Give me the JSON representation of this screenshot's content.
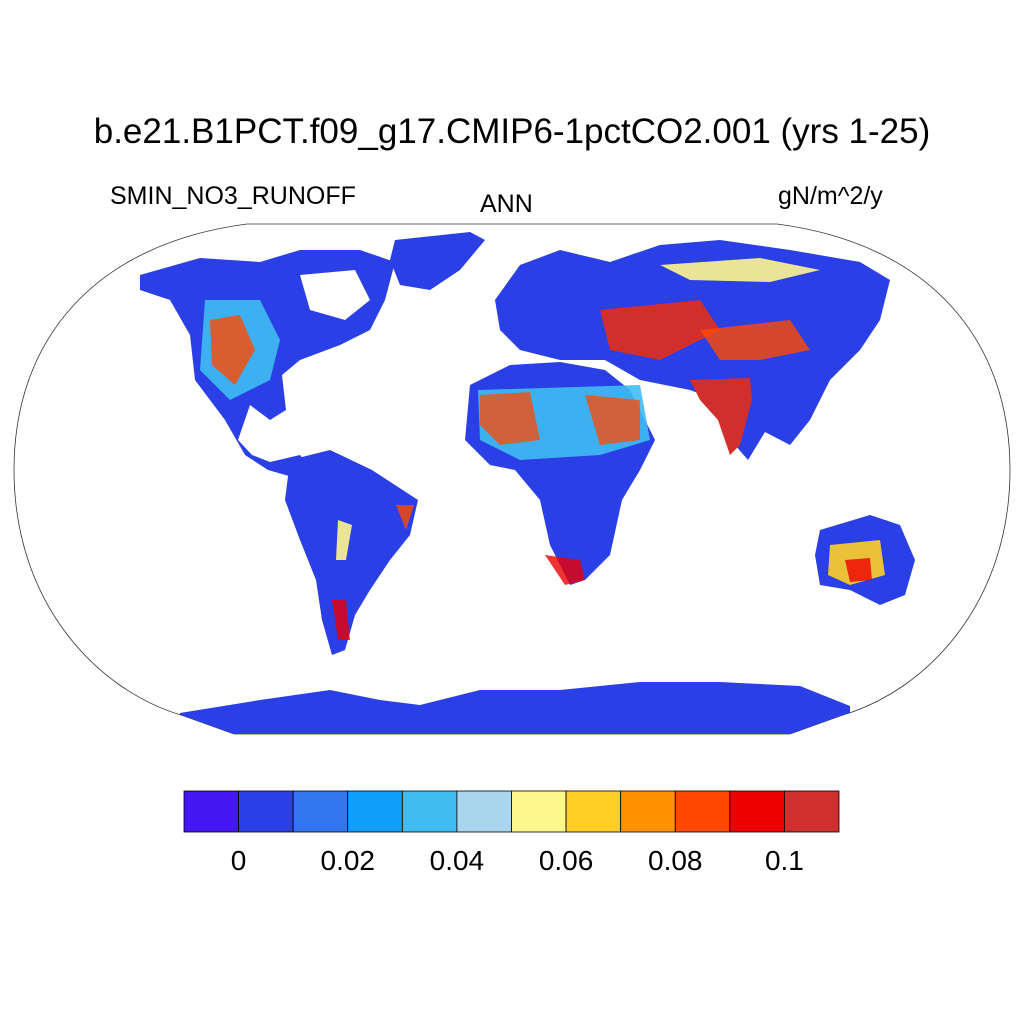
{
  "header": {
    "title": "b.e21.B1PCT.f09_g17.CMIP6-1pctCO2.001 (yrs 1-25)",
    "variable": "SMIN_NO3_RUNOFF",
    "season": "ANN",
    "units": "gN/m^2/y"
  },
  "map": {
    "projection": "Robinson",
    "fill_color_ocean": "#ffffff",
    "dominant_land_color": "#2a3fe6",
    "land_regions": [
      "North America",
      "Greenland",
      "South America",
      "Europe",
      "Africa",
      "Asia",
      "India",
      "Australia",
      "Antarctica"
    ]
  },
  "colorbar": {
    "colors": [
      "#4316f2",
      "#2a3fe6",
      "#3275ec",
      "#119ffb",
      "#3fbdf3",
      "#a9d6ee",
      "#fff68e",
      "#ffcf25",
      "#ff9200",
      "#ff4800",
      "#ee0000",
      "#d12e2e"
    ],
    "tick_labels": [
      "0",
      "0.02",
      "0.04",
      "0.06",
      "0.08",
      "0.1"
    ]
  }
}
